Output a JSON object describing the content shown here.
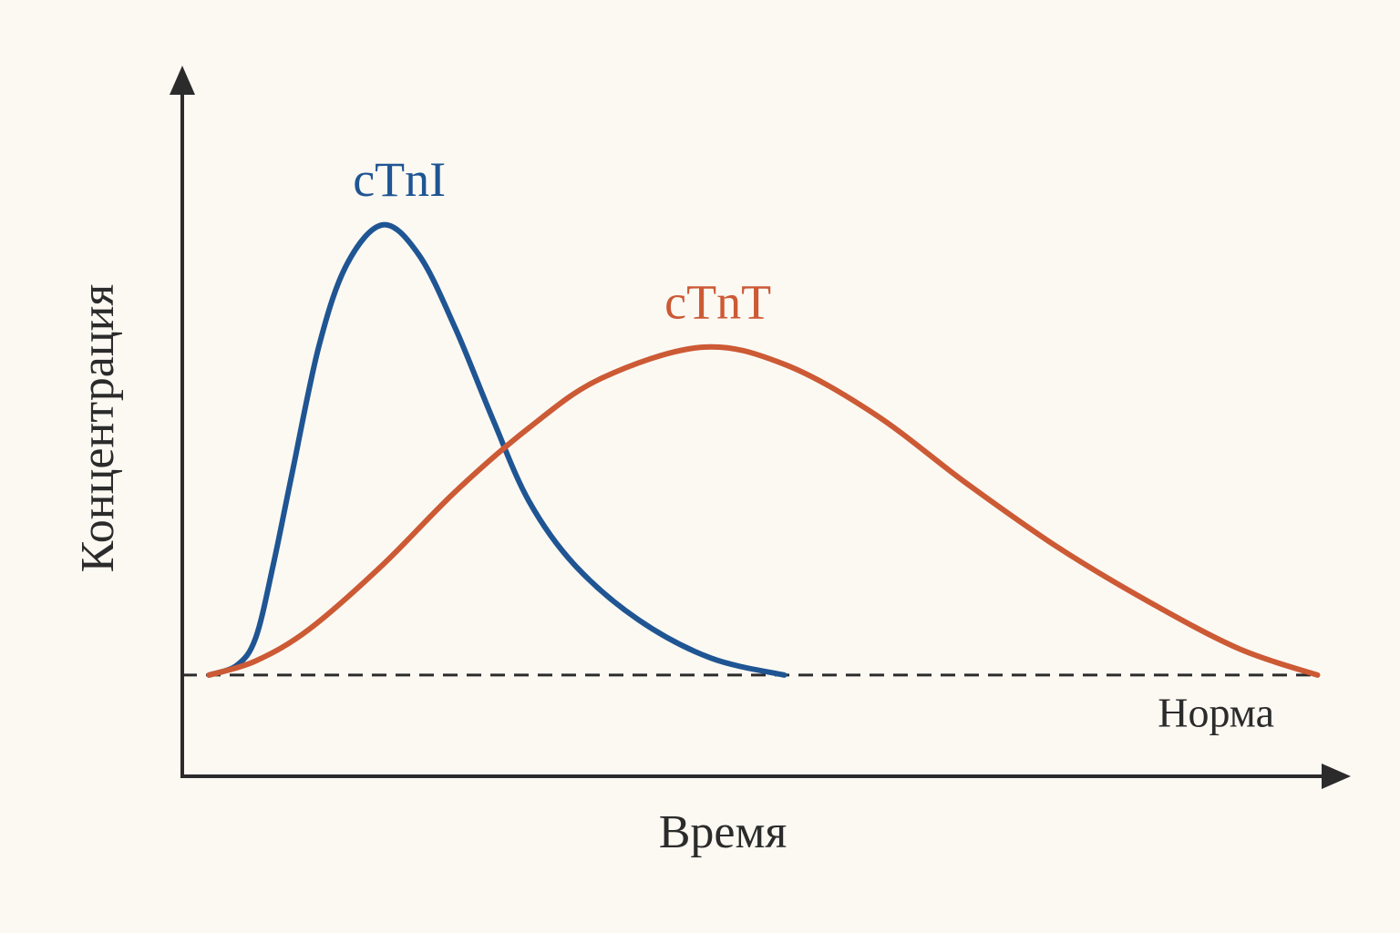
{
  "chart_data": {
    "type": "line",
    "xlabel": "Время",
    "ylabel": "Концентрация",
    "xlim": [
      0,
      100
    ],
    "ylim": [
      0,
      100
    ],
    "series": [
      {
        "name": "cTnI",
        "color": "#1f5593",
        "x": [
          2.3,
          4.7,
          6.3,
          7.8,
          9.4,
          11.7,
          14.1,
          17.2,
          20.3,
          23.4,
          26.6,
          29.7,
          33.6,
          39.1,
          45.3,
          51.6
        ],
        "values": [
          14.3,
          15.7,
          19.6,
          29.9,
          42.7,
          60.7,
          72.3,
          77.9,
          73.6,
          63.3,
          50.5,
          38.9,
          29.9,
          22.1,
          16.7,
          14.3
        ]
      },
      {
        "name": "cTnT",
        "color": "#cc5a35",
        "x": [
          2.3,
          6.3,
          10.9,
          17.2,
          23.4,
          29.7,
          35.9,
          44.5,
          51.6,
          59.4,
          67.2,
          75,
          82.8,
          90.6,
          97.3
        ],
        "values": [
          14.3,
          16.3,
          20.8,
          29.9,
          40.2,
          49.2,
          56.2,
          60.6,
          58.2,
          51.1,
          41.4,
          32.4,
          24.7,
          18,
          14.3
        ]
      }
    ],
    "baseline": {
      "label": "Норма",
      "value": 14.3
    }
  }
}
